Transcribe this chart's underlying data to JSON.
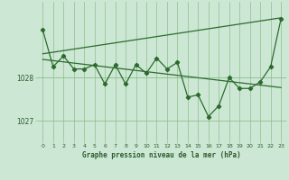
{
  "title": "Graphe pression niveau de la mer (hPa)",
  "hours": [
    0,
    1,
    2,
    3,
    4,
    5,
    6,
    7,
    8,
    9,
    10,
    11,
    12,
    13,
    14,
    15,
    16,
    17,
    18,
    19,
    20,
    21,
    22,
    23
  ],
  "pressure": [
    1029.1,
    1028.25,
    1028.5,
    1028.2,
    1028.2,
    1028.3,
    1027.85,
    1028.3,
    1027.85,
    1028.3,
    1028.1,
    1028.45,
    1028.2,
    1028.35,
    1027.55,
    1027.6,
    1027.1,
    1027.35,
    1028.0,
    1027.75,
    1027.75,
    1027.9,
    1028.25,
    1029.35
  ],
  "upper_trend": [
    1028.55,
    1029.38
  ],
  "lower_trend": [
    1028.42,
    1027.77
  ],
  "line_color": "#2d6a2d",
  "bg_color": "#cce8d4",
  "grid_color": "#8fbc8f",
  "text_color": "#2d5a2d",
  "ylim": [
    1026.55,
    1029.75
  ],
  "ytick_values": [
    1027.0,
    1028.0
  ],
  "ytick_labels": [
    "1027",
    "1028"
  ],
  "xlim": [
    -0.5,
    23.5
  ]
}
